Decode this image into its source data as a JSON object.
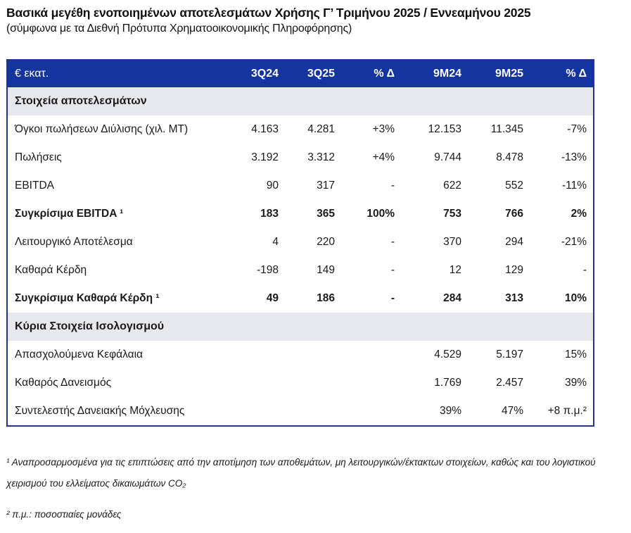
{
  "page": {
    "title": "Βασικά μεγέθη ενοποιημένων αποτελεσμάτων Χρήσης Γ’ Τριμήνου 2025 / Εννεαμήνου 2025",
    "subtitle": "(σύμφωνα με τα Διεθνή Πρότυπα Χρηματοοικονομικής Πληροφόρησης)"
  },
  "colors": {
    "header_bg": "#14349e",
    "section_bg": "#e7e7ee",
    "table_border": "#25348f",
    "header_text": "#ffffff",
    "body_text": "#1a1a1a"
  },
  "table": {
    "columns": [
      "€ εκατ.",
      "3Q24",
      "3Q25",
      "% Δ",
      "9M24",
      "9M25",
      "% Δ"
    ],
    "sections": [
      {
        "title": "Στοιχεία αποτελεσμάτων",
        "rows": [
          {
            "label": "Όγκοι πωλήσεων Διύλισης (χιλ. ΜΤ)",
            "v": [
              "4.163",
              "4.281",
              "+3%",
              "12.153",
              "11.345",
              "-7%"
            ]
          },
          {
            "label": "Πωλήσεις",
            "v": [
              "3.192",
              "3.312",
              "+4%",
              "9.744",
              "8.478",
              "-13%"
            ]
          },
          {
            "label": "EBITDA",
            "v": [
              "90",
              "317",
              "-",
              "622",
              "552",
              "-11%"
            ]
          },
          {
            "label": "Συγκρίσιμα EBITDA ¹",
            "v": [
              "183",
              "365",
              "100%",
              "753",
              "766",
              "2%"
            ]
          },
          {
            "label": "Λειτουργικό Αποτέλεσμα",
            "v": [
              "4",
              "220",
              "-",
              "370",
              "294",
              "-21%"
            ]
          },
          {
            "label": "Καθαρά Κέρδη",
            "v": [
              "-198",
              "149",
              "-",
              "12",
              "129",
              "-"
            ]
          },
          {
            "label": "Συγκρίσιμα Καθαρά Κέρδη ¹",
            "v": [
              "49",
              "186",
              "-",
              "284",
              "313",
              "10%"
            ]
          }
        ]
      },
      {
        "title": "Κύρια Στοιχεία Ισολογισμού",
        "rows": [
          {
            "label": "Απασχολούμενα Κεφάλαια",
            "v": [
              "",
              "",
              "",
              "4.529",
              "5.197",
              "15%"
            ]
          },
          {
            "label": "Καθαρός Δανεισμός",
            "v": [
              "",
              "",
              "",
              "1.769",
              "2.457",
              "39%"
            ]
          },
          {
            "label": "Συντελεστής Δανειακής Μόχλευσης",
            "v": [
              "",
              "",
              "",
              "39%",
              "47%",
              "+8 π.μ.²"
            ]
          }
        ]
      }
    ]
  },
  "footnotes": [
    {
      "text": "¹ Αναπροσαρμοσμένα για τις επιπτώσεις από την αποτίμηση των αποθεμάτων, μη λειτουργικών/έκτακτων στοιχείων, καθώς και του λογιστικού χειρισμού του ελλείματος δικαιωμάτων CO₂"
    },
    {
      "text": "² π.μ.: ποσοστιαίες μονάδες"
    }
  ]
}
